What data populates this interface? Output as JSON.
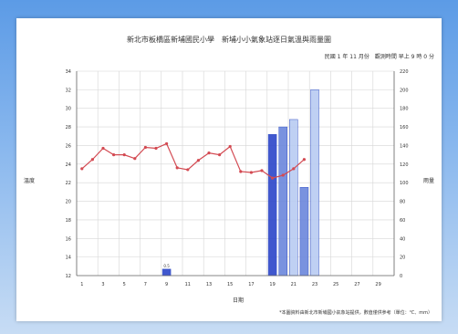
{
  "chart_data": {
    "type": "bar+line",
    "title": "新北市板橋區新埔國民小學　新埔小小氣象站逐日氣溫與雨量圖",
    "subtitle": "民國 1 年 11 月份　觀測時間 早上 9 時 0 分",
    "ylabel_left": "溫度",
    "ylabel_right": "雨量",
    "xlabel": "日期",
    "footnote": "*本圖資料由新北市新埔國小氣象站提供，數值僅供參考（單位：℃、mm）",
    "x_tick_labels": [
      "1",
      "3",
      "5",
      "7",
      "9",
      "11",
      "13",
      "15",
      "17",
      "19",
      "21",
      "23",
      "25",
      "27",
      "29"
    ],
    "left_ticks": [
      "34",
      "32",
      "30",
      "28",
      "26",
      "24",
      "22",
      "20",
      "18",
      "16",
      "14",
      "12"
    ],
    "right_ticks": [
      "220",
      "200",
      "180",
      "160",
      "140",
      "120",
      "100",
      "80",
      "60",
      "40",
      "20",
      "0"
    ],
    "left_ylim": [
      12,
      34
    ],
    "right_ylim": [
      0,
      220
    ],
    "days": [
      1,
      2,
      3,
      4,
      5,
      6,
      7,
      8,
      9,
      10,
      11,
      12,
      13,
      14,
      15,
      16,
      17,
      18,
      19,
      20,
      21,
      22,
      23,
      24,
      25,
      26,
      27,
      28,
      29,
      30
    ],
    "series": [
      {
        "name": "氣溫",
        "type": "line",
        "values": [
          23.5,
          24.5,
          25.7,
          25,
          25,
          24.6,
          25.8,
          25.7,
          26.2,
          23.6,
          23.4,
          24.4,
          25.2,
          25,
          25.9,
          23.2,
          23.1,
          23.3,
          22.5,
          22.8,
          23.5,
          24.5,
          null,
          null,
          null,
          null,
          null,
          null,
          null,
          null
        ]
      },
      {
        "name": "雨量",
        "type": "bar",
        "values": [
          0,
          0,
          0,
          0,
          0,
          0,
          0,
          0,
          7,
          0,
          0,
          0,
          0,
          0,
          0,
          0,
          0,
          0,
          152,
          160,
          168,
          95,
          200,
          0,
          0,
          0,
          0,
          0,
          0,
          0
        ]
      }
    ],
    "bar_annotation": "0.5",
    "colors": {
      "line": "#d34a52",
      "bar_dark": "#2b45c9",
      "bar_mid": "#6a86dc",
      "bar_light": "#b8cbf2",
      "grid": "#d6d6d6",
      "axis": "#666666"
    }
  }
}
